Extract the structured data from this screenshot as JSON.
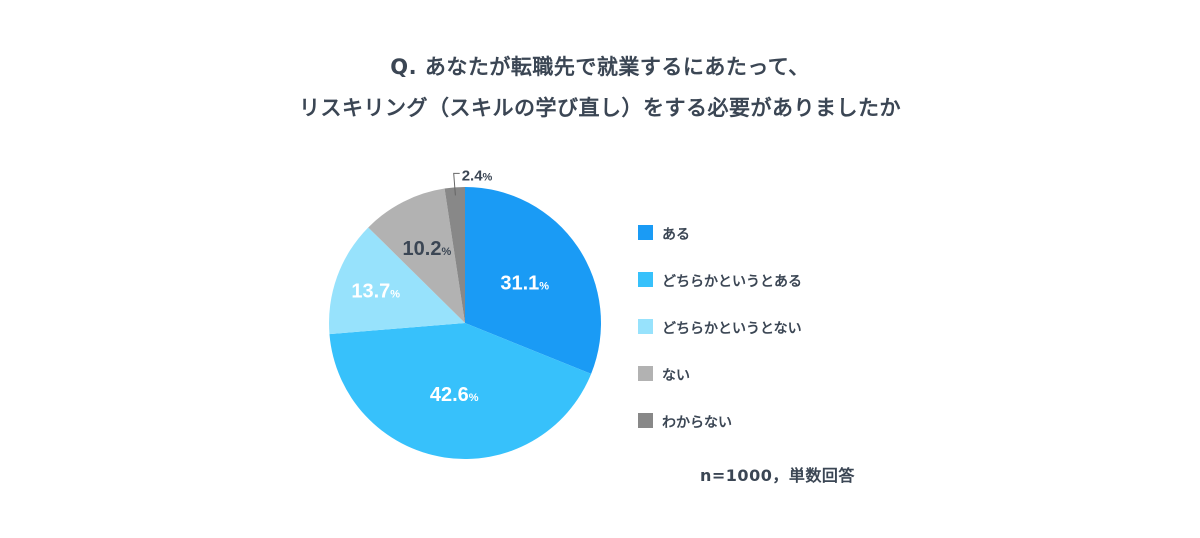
{
  "chart_data": {
    "type": "pie",
    "title_lines": [
      "Q. あなたが転職先で就業するにあたって、",
      "リスキリング（スキルの学び直し）をする必要がありましたか"
    ],
    "categories": [
      "ある",
      "どちらかというとある",
      "どちらかというとない",
      "ない",
      "わからない"
    ],
    "values": [
      31.1,
      42.6,
      13.7,
      10.2,
      2.4
    ],
    "value_unit": "%",
    "colors": [
      "#1a9bf5",
      "#37c1fb",
      "#97e2fc",
      "#b2b2b2",
      "#888888"
    ],
    "label_colors": [
      "#ffffff",
      "#ffffff",
      "#ffffff",
      "#3b4654",
      "#3b4654"
    ],
    "start_angle_deg": 0,
    "direction": "clockwise",
    "legend_position": "right",
    "note": "n=1000，単数回答"
  }
}
